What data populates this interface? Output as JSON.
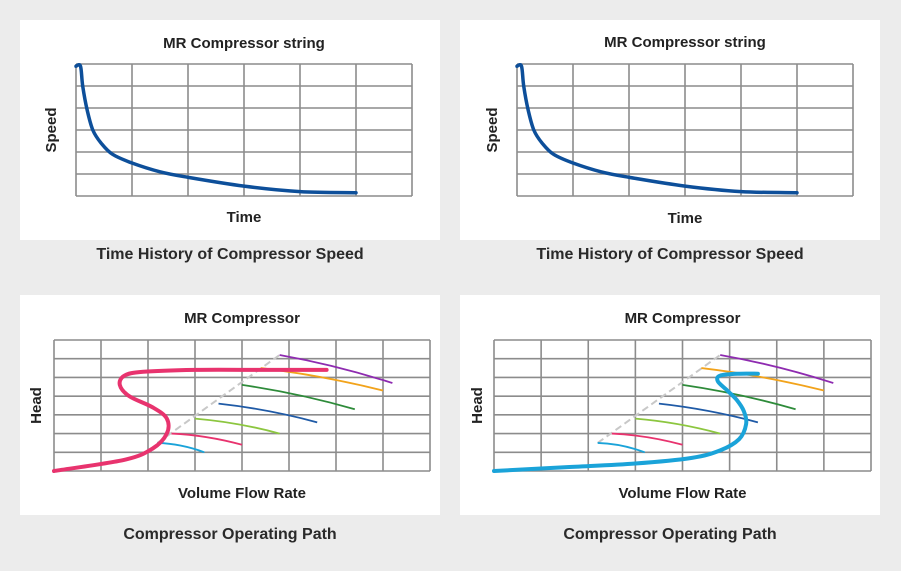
{
  "charts": [
    {
      "id": "tl",
      "title": "MR Compressor string",
      "xlabel": "Time",
      "ylabel": "Speed",
      "caption": "Time History of Compressor Speed"
    },
    {
      "id": "tr",
      "title": "MR Compressor string",
      "xlabel": "Time",
      "ylabel": "Speed",
      "caption": "Time History of Compressor Speed"
    },
    {
      "id": "bl",
      "title": "MR Compressor",
      "xlabel": "Volume Flow Rate",
      "ylabel": "Head",
      "caption": "Compressor Operating Path"
    },
    {
      "id": "br",
      "title": "MR Compressor",
      "xlabel": "Volume Flow Rate",
      "ylabel": "Head",
      "caption": "Compressor Operating Path"
    }
  ],
  "colors": {
    "background": "#ececec",
    "panel": "#ffffff",
    "grid": "#8c8c8c",
    "speed_line": "#0d4f9a",
    "path_left": "#e8336e",
    "path_right": "#1aa3d9",
    "surge_line": "#c8c8c8",
    "speed_curves": [
      "#1aa3d9",
      "#e8336e",
      "#8cc63f",
      "#1f5aa6",
      "#2e8b3a",
      "#f2a31b",
      "#8e2bb0"
    ]
  },
  "chart_data": [
    {
      "type": "line",
      "title": "MR Compressor string",
      "xlabel": "Time",
      "ylabel": "Speed",
      "grid": true,
      "xlim": [
        0,
        6
      ],
      "ylim": [
        0,
        6
      ],
      "series": [
        {
          "x": [
            0.0,
            0.08,
            0.12,
            0.2,
            0.3,
            0.45,
            0.65,
            1.0,
            1.5,
            2.0,
            3.0,
            4.0,
            5.0
          ],
          "y": [
            5.9,
            5.9,
            5.0,
            3.9,
            3.0,
            2.4,
            1.9,
            1.5,
            1.1,
            0.85,
            0.45,
            0.2,
            0.15
          ]
        }
      ]
    },
    {
      "type": "line",
      "title": "MR Compressor string",
      "xlabel": "Time",
      "ylabel": "Speed",
      "grid": true,
      "xlim": [
        0,
        6
      ],
      "ylim": [
        0,
        6
      ],
      "series": [
        {
          "x": [
            0.0,
            0.08,
            0.12,
            0.2,
            0.3,
            0.45,
            0.65,
            1.0,
            1.5,
            2.0,
            3.0,
            4.0,
            5.0
          ],
          "y": [
            5.9,
            5.9,
            5.0,
            3.9,
            3.0,
            2.4,
            1.9,
            1.5,
            1.1,
            0.85,
            0.45,
            0.2,
            0.15
          ]
        }
      ]
    },
    {
      "type": "line",
      "title": "MR Compressor",
      "xlabel": "Volume Flow Rate",
      "ylabel": "Head",
      "grid": true,
      "xlim": [
        0,
        8
      ],
      "ylim": [
        0,
        7
      ],
      "surge_line": {
        "x": [
          2.2,
          4.8
        ],
        "y": [
          1.5,
          6.2
        ]
      },
      "speed_lines": [
        {
          "x": [
            2.2,
            3.2
          ],
          "y": [
            1.5,
            1.0
          ]
        },
        {
          "x": [
            2.5,
            4.0
          ],
          "y": [
            2.0,
            1.4
          ]
        },
        {
          "x": [
            3.0,
            4.8
          ],
          "y": [
            2.8,
            2.0
          ]
        },
        {
          "x": [
            3.5,
            5.6
          ],
          "y": [
            3.6,
            2.6
          ]
        },
        {
          "x": [
            4.0,
            6.4
          ],
          "y": [
            4.6,
            3.3
          ]
        },
        {
          "x": [
            4.4,
            7.0
          ],
          "y": [
            5.5,
            4.3
          ]
        },
        {
          "x": [
            4.8,
            7.2
          ],
          "y": [
            6.2,
            4.7
          ]
        }
      ],
      "operating_path": {
        "x": [
          0.0,
          1.5,
          2.1,
          2.4,
          2.4,
          2.1,
          1.6,
          1.4,
          1.5,
          1.9,
          3.0,
          4.5,
          5.8
        ],
        "y": [
          0.0,
          0.6,
          1.2,
          2.0,
          2.8,
          3.4,
          4.0,
          4.6,
          5.1,
          5.3,
          5.4,
          5.4,
          5.4
        ]
      }
    },
    {
      "type": "line",
      "title": "MR Compressor",
      "xlabel": "Volume Flow Rate",
      "ylabel": "Head",
      "grid": true,
      "xlim": [
        0,
        8
      ],
      "ylim": [
        0,
        7
      ],
      "surge_line": {
        "x": [
          2.2,
          4.8
        ],
        "y": [
          1.5,
          6.2
        ]
      },
      "speed_lines": [
        {
          "x": [
            2.2,
            3.2
          ],
          "y": [
            1.5,
            1.0
          ]
        },
        {
          "x": [
            2.5,
            4.0
          ],
          "y": [
            2.0,
            1.4
          ]
        },
        {
          "x": [
            3.0,
            4.8
          ],
          "y": [
            2.8,
            2.0
          ]
        },
        {
          "x": [
            3.5,
            5.6
          ],
          "y": [
            3.6,
            2.6
          ]
        },
        {
          "x": [
            4.0,
            6.4
          ],
          "y": [
            4.6,
            3.3
          ]
        },
        {
          "x": [
            4.4,
            7.0
          ],
          "y": [
            5.5,
            4.3
          ]
        },
        {
          "x": [
            4.8,
            7.2
          ],
          "y": [
            6.2,
            4.7
          ]
        }
      ],
      "operating_path": {
        "x": [
          0.0,
          1.5,
          3.0,
          4.2,
          4.8,
          5.2,
          5.35,
          5.3,
          5.15,
          4.95,
          4.75,
          4.8,
          5.2,
          5.6
        ],
        "y": [
          0.0,
          0.2,
          0.4,
          0.7,
          1.1,
          1.7,
          2.5,
          3.2,
          3.8,
          4.3,
          4.8,
          5.1,
          5.2,
          5.2
        ]
      }
    }
  ]
}
